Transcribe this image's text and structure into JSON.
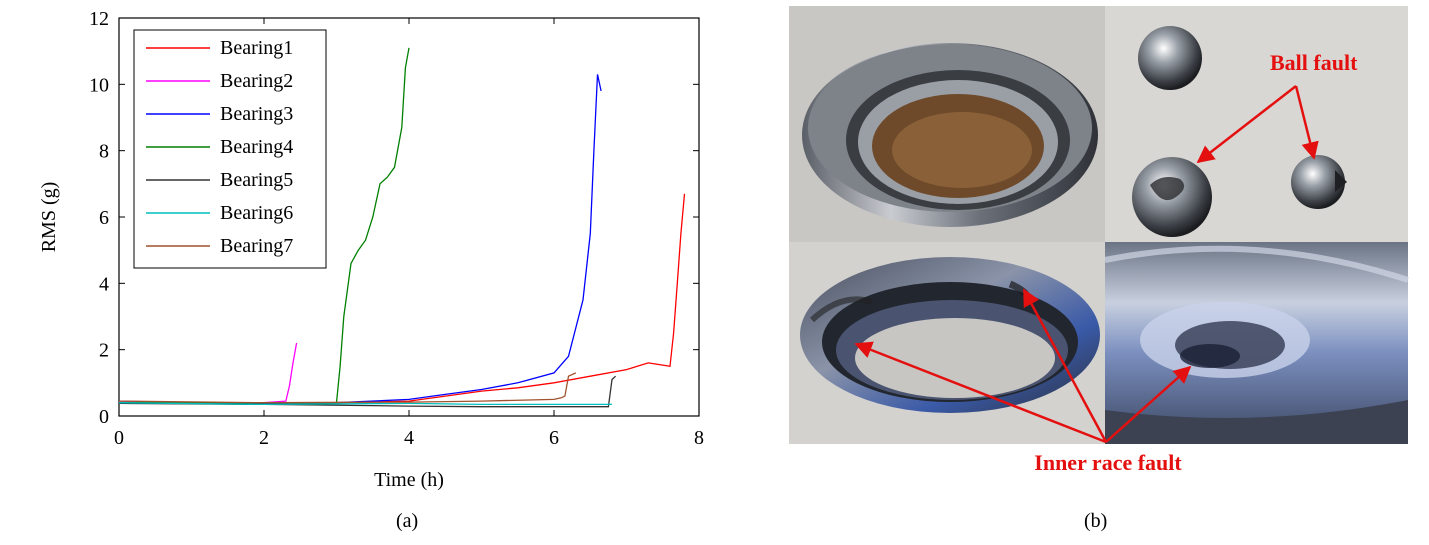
{
  "chart_data": {
    "type": "line",
    "xlabel": "Time (h)",
    "ylabel": "RMS (g)",
    "xlim": [
      0,
      8
    ],
    "ylim": [
      0,
      12
    ],
    "xticks": [
      "0",
      "2",
      "4",
      "6",
      "8"
    ],
    "yticks": [
      "0",
      "2",
      "4",
      "6",
      "8",
      "10",
      "12"
    ],
    "grid": false,
    "legend_position": "top-left",
    "series": [
      {
        "name": "Bearing1",
        "color": "#ff0000",
        "x": [
          0,
          1,
          2,
          3,
          4,
          4.5,
          5,
          5.5,
          6,
          6.5,
          7,
          7.3,
          7.6,
          7.65,
          7.7,
          7.75,
          7.8
        ],
        "y": [
          0.4,
          0.38,
          0.38,
          0.4,
          0.45,
          0.6,
          0.75,
          0.85,
          1.0,
          1.2,
          1.4,
          1.6,
          1.5,
          2.5,
          4.0,
          5.5,
          6.7
        ]
      },
      {
        "name": "Bearing2",
        "color": "#ff00ff",
        "x": [
          0,
          1,
          2,
          2.3,
          2.35,
          2.4,
          2.45
        ],
        "y": [
          0.45,
          0.4,
          0.4,
          0.45,
          0.9,
          1.6,
          2.2
        ]
      },
      {
        "name": "Bearing3",
        "color": "#0000ff",
        "x": [
          0,
          1,
          2,
          3,
          4,
          4.5,
          5,
          5.5,
          6,
          6.2,
          6.4,
          6.5,
          6.55,
          6.6,
          6.65
        ],
        "y": [
          0.4,
          0.38,
          0.38,
          0.4,
          0.5,
          0.65,
          0.8,
          1.0,
          1.3,
          1.8,
          3.5,
          5.5,
          8.0,
          10.3,
          9.8
        ]
      },
      {
        "name": "Bearing4",
        "color": "#008000",
        "x": [
          0,
          2,
          3.0,
          3.05,
          3.1,
          3.2,
          3.3,
          3.4,
          3.5,
          3.6,
          3.7,
          3.8,
          3.9,
          3.95,
          4.0
        ],
        "y": [
          0.4,
          0.4,
          0.4,
          1.5,
          3.0,
          4.6,
          5.0,
          5.3,
          6.0,
          7.0,
          7.2,
          7.5,
          8.7,
          10.5,
          11.1
        ]
      },
      {
        "name": "Bearing5",
        "color": "#333333",
        "x": [
          0,
          2,
          4,
          5,
          6,
          6.5,
          6.75,
          6.8,
          6.85
        ],
        "y": [
          0.38,
          0.35,
          0.3,
          0.28,
          0.28,
          0.28,
          0.28,
          1.1,
          1.2
        ]
      },
      {
        "name": "Bearing6",
        "color": "#00bfbf",
        "x": [
          0,
          2,
          4,
          5,
          6,
          6.4,
          6.6,
          6.8
        ],
        "y": [
          0.4,
          0.35,
          0.38,
          0.35,
          0.35,
          0.35,
          0.35,
          0.35
        ]
      },
      {
        "name": "Bearing7",
        "color": "#a0522d",
        "x": [
          0,
          2,
          4,
          5,
          6,
          6.1,
          6.15,
          6.2,
          6.3
        ],
        "y": [
          0.45,
          0.4,
          0.42,
          0.45,
          0.5,
          0.55,
          0.6,
          1.2,
          1.3
        ]
      }
    ]
  },
  "captions": {
    "a": "(a)",
    "b": "(b)"
  },
  "photo_annotations": {
    "ball_fault": "Ball fault",
    "inner_race_fault": "Inner race fault"
  }
}
